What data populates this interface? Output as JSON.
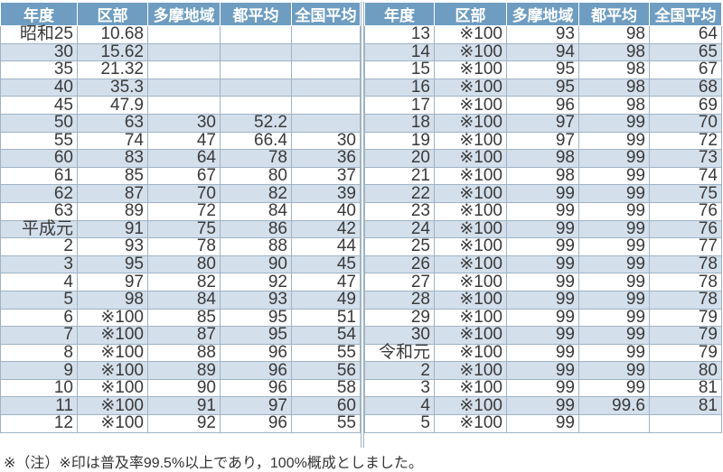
{
  "headers": [
    "年度",
    "区部",
    "多摩地域",
    "都平均",
    "全国平均"
  ],
  "colors": {
    "header_bg": "#6e9dc1",
    "alt_row_bg": "#d3dfeb"
  },
  "left_rows": [
    [
      "昭和25",
      "10.68",
      "",
      "",
      ""
    ],
    [
      "30",
      "15.62",
      "",
      "",
      ""
    ],
    [
      "35",
      "21.32",
      "",
      "",
      ""
    ],
    [
      "40",
      "35.3",
      "",
      "",
      ""
    ],
    [
      "45",
      "47.9",
      "",
      "",
      ""
    ],
    [
      "50",
      "63",
      "30",
      "52.2",
      ""
    ],
    [
      "55",
      "74",
      "47",
      "66.4",
      "30"
    ],
    [
      "60",
      "83",
      "64",
      "78",
      "36"
    ],
    [
      "61",
      "85",
      "67",
      "80",
      "37"
    ],
    [
      "62",
      "87",
      "70",
      "82",
      "39"
    ],
    [
      "63",
      "89",
      "72",
      "84",
      "40"
    ],
    [
      "平成元",
      "91",
      "75",
      "86",
      "42"
    ],
    [
      "2",
      "93",
      "78",
      "88",
      "44"
    ],
    [
      "3",
      "95",
      "80",
      "90",
      "45"
    ],
    [
      "4",
      "97",
      "82",
      "92",
      "47"
    ],
    [
      "5",
      "98",
      "84",
      "93",
      "49"
    ],
    [
      "6",
      "※100",
      "85",
      "95",
      "51"
    ],
    [
      "7",
      "※100",
      "87",
      "95",
      "54"
    ],
    [
      "8",
      "※100",
      "88",
      "96",
      "55"
    ],
    [
      "9",
      "※100",
      "89",
      "96",
      "56"
    ],
    [
      "10",
      "※100",
      "90",
      "96",
      "58"
    ],
    [
      "11",
      "※100",
      "91",
      "97",
      "60"
    ],
    [
      "12",
      "※100",
      "92",
      "96",
      "55"
    ]
  ],
  "right_rows": [
    [
      "13",
      "※100",
      "93",
      "98",
      "64"
    ],
    [
      "14",
      "※100",
      "94",
      "98",
      "65"
    ],
    [
      "15",
      "※100",
      "95",
      "98",
      "67"
    ],
    [
      "16",
      "※100",
      "95",
      "98",
      "68"
    ],
    [
      "17",
      "※100",
      "96",
      "98",
      "69"
    ],
    [
      "18",
      "※100",
      "97",
      "99",
      "70"
    ],
    [
      "19",
      "※100",
      "97",
      "99",
      "72"
    ],
    [
      "20",
      "※100",
      "98",
      "99",
      "73"
    ],
    [
      "21",
      "※100",
      "98",
      "99",
      "74"
    ],
    [
      "22",
      "※100",
      "99",
      "99",
      "75"
    ],
    [
      "23",
      "※100",
      "99",
      "99",
      "76"
    ],
    [
      "24",
      "※100",
      "99",
      "99",
      "76"
    ],
    [
      "25",
      "※100",
      "99",
      "99",
      "77"
    ],
    [
      "26",
      "※100",
      "99",
      "99",
      "78"
    ],
    [
      "27",
      "※100",
      "99",
      "99",
      "78"
    ],
    [
      "28",
      "※100",
      "99",
      "99",
      "78"
    ],
    [
      "29",
      "※100",
      "99",
      "99",
      "79"
    ],
    [
      "30",
      "※100",
      "99",
      "99",
      "79"
    ],
    [
      "令和元",
      "※100",
      "99",
      "99",
      "79"
    ],
    [
      "2",
      "※100",
      "99",
      "99",
      "80"
    ],
    [
      "3",
      "※100",
      "99",
      "99",
      "81"
    ],
    [
      "4",
      "※100",
      "99",
      "99.6",
      "81"
    ],
    [
      "5",
      "※100",
      "99",
      "",
      ""
    ]
  ],
  "note": "※（注）※印は普及率99.5%以上であり，100%概成としました。"
}
